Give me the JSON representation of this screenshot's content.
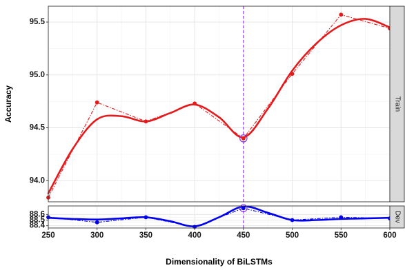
{
  "chart_data": {
    "type": "line",
    "xlabel": "Dimensionality of BiLSTMs",
    "ylabel": "Accuracy",
    "x": [
      250,
      300,
      350,
      400,
      450,
      500,
      550,
      600
    ],
    "x_ticks": [
      "250",
      "300",
      "350",
      "400",
      "450",
      "500",
      "550",
      "600"
    ],
    "xlim": [
      250,
      600
    ],
    "highlight_x": 450,
    "highlight_tick_label": "450",
    "grid": true,
    "panels": [
      {
        "strip_label": "Train",
        "ylim": [
          93.8,
          95.65
        ],
        "y_ticks": [
          94.0,
          94.5,
          95.0,
          95.5
        ],
        "y_tick_labels": [
          "94.0",
          "94.5",
          "95.0",
          "95.5"
        ],
        "color": "#e41a1c",
        "observed": [
          93.84,
          94.74,
          94.56,
          94.73,
          94.4,
          95.01,
          95.57,
          95.44
        ],
        "smoothed": [
          [
            250,
            93.88
          ],
          [
            275,
            94.3
          ],
          [
            300,
            94.58
          ],
          [
            325,
            94.61
          ],
          [
            350,
            94.56
          ],
          [
            375,
            94.64
          ],
          [
            400,
            94.72
          ],
          [
            425,
            94.6
          ],
          [
            450,
            94.41
          ],
          [
            475,
            94.68
          ],
          [
            500,
            95.04
          ],
          [
            525,
            95.3
          ],
          [
            550,
            95.47
          ],
          [
            575,
            95.53
          ],
          [
            600,
            95.45
          ]
        ]
      },
      {
        "strip_label": "Dev",
        "ylim": [
          88.36,
          88.75
        ],
        "y_ticks": [
          88.4,
          88.5,
          88.6
        ],
        "y_tick_labels": [
          "88.4",
          "88.5",
          "88.6"
        ],
        "color": "#0000ee",
        "observed": [
          88.55,
          88.46,
          88.55,
          88.38,
          88.71,
          88.5,
          88.55,
          88.53
        ],
        "smoothed": [
          [
            250,
            88.54
          ],
          [
            275,
            88.52
          ],
          [
            300,
            88.51
          ],
          [
            325,
            88.53
          ],
          [
            350,
            88.55
          ],
          [
            375,
            88.48
          ],
          [
            400,
            88.39
          ],
          [
            425,
            88.55
          ],
          [
            450,
            88.74
          ],
          [
            475,
            88.63
          ],
          [
            500,
            88.5
          ],
          [
            525,
            88.5
          ],
          [
            550,
            88.52
          ],
          [
            575,
            88.53
          ],
          [
            600,
            88.54
          ]
        ]
      }
    ]
  }
}
